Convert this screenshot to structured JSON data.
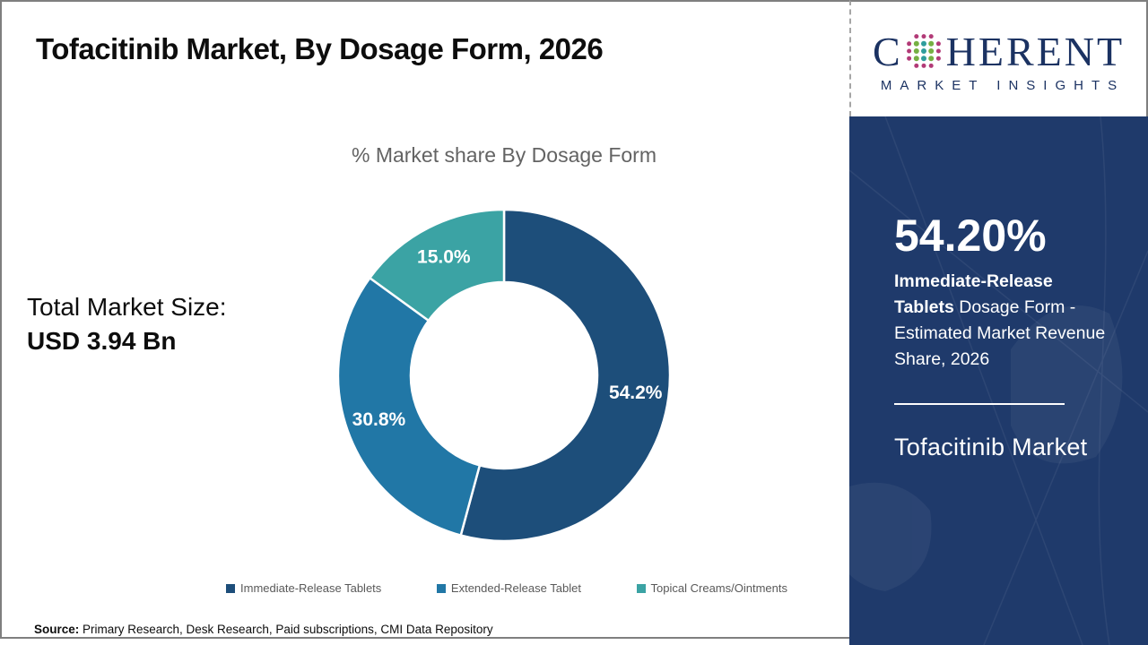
{
  "header": {
    "title": "Tofacitinib Market, By Dosage Form, 2026"
  },
  "logo": {
    "word_start": "C",
    "word_rest": "HERENT",
    "tagline": "MARKET INSIGHTS",
    "brand_color": "#1b3262",
    "globe_dot_colors": {
      "outer": "#b23a77",
      "teal": "#2f9d9d",
      "green": "#76b043"
    }
  },
  "market_size": {
    "label": "Total Market Size:",
    "value": "USD 3.94 Bn"
  },
  "chart_data": {
    "type": "pie",
    "variant": "donut",
    "title": "% Market share By Dosage Form",
    "categories": [
      "Immediate-Release Tablets",
      "Extended-Release Tablet",
      "Topical Creams/Ointments"
    ],
    "values": [
      54.2,
      30.8,
      15.0
    ],
    "slice_labels": [
      "54.2%",
      "30.8%",
      "15.0%"
    ],
    "colors": [
      "#1d4e7a",
      "#2177a6",
      "#3ba3a4"
    ],
    "start_angle_deg": 0,
    "direction": "clockwise",
    "outer_radius": 185,
    "inner_radius": 104,
    "label_radius": 148,
    "legend_position": "bottom"
  },
  "sidebar": {
    "background": "#1f3a6b",
    "stat_value": "54.20%",
    "stat_label_bold": "Immediate-Release Tablets",
    "stat_label_rest": " Dosage Form - Estimated Market Revenue Share, 2026",
    "market_name": "Tofacitinib Market"
  },
  "source": {
    "label": "Source:",
    "text": " Primary Research, Desk Research, Paid subscriptions, CMI Data Repository"
  }
}
